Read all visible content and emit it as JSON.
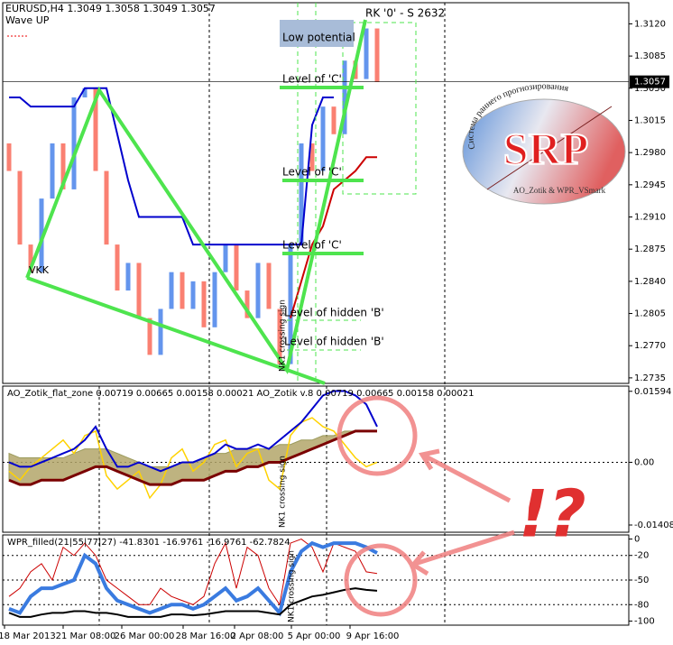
{
  "header": {
    "symbol_line": "EURUSD,H4  1.3049 1.3058 1.3049 1.3057",
    "indicator": "Wave UP"
  },
  "main_chart": {
    "type": "bar",
    "open": [
      1.299,
      1.296,
      1.288,
      1.285,
      1.293,
      1.299,
      1.294,
      1.304,
      1.305,
      1.296,
      1.288,
      1.283,
      1.286,
      1.28,
      1.276,
      1.281,
      1.285,
      1.281,
      1.284,
      1.279,
      1.285,
      1.288,
      1.283,
      1.28,
      1.286,
      1.281,
      1.275,
      1.288,
      1.299,
      1.296,
      1.303,
      1.3,
      1.308,
      1.306,
      1.3115
    ],
    "close": [
      1.296,
      1.288,
      1.285,
      1.293,
      1.299,
      1.294,
      1.304,
      1.305,
      1.296,
      1.288,
      1.283,
      1.286,
      1.28,
      1.276,
      1.281,
      1.285,
      1.281,
      1.284,
      1.279,
      1.285,
      1.288,
      1.283,
      1.28,
      1.286,
      1.281,
      1.275,
      1.288,
      1.299,
      1.296,
      1.303,
      1.3,
      1.308,
      1.306,
      1.3115,
      1.3057
    ],
    "channel": [
      1.304,
      1.304,
      1.303,
      1.303,
      1.303,
      1.303,
      1.303,
      1.305,
      1.305,
      1.305,
      1.3,
      1.295,
      1.291,
      1.291,
      1.291,
      1.291,
      1.291,
      1.288,
      1.288,
      1.288,
      1.288,
      1.288,
      1.288,
      1.288,
      1.288,
      1.288,
      1.288,
      1.288,
      1.301,
      1.304,
      1.304,
      null,
      null,
      null,
      null
    ],
    "stop": [
      null,
      null,
      null,
      null,
      null,
      null,
      null,
      null,
      null,
      null,
      null,
      null,
      null,
      null,
      null,
      null,
      null,
      null,
      null,
      null,
      null,
      null,
      null,
      null,
      null,
      null,
      1.28,
      1.284,
      1.288,
      1.29,
      1.294,
      1.295,
      1.296,
      1.2975,
      1.2975
    ],
    "up_color": "#6495ed",
    "down_color": "#fa8072",
    "channel_color": "#0000cd",
    "stop_color": "#cc0000",
    "ylim": [
      1.2729,
      1.3143
    ],
    "yticks": [
      {
        "value": 1.312,
        "label": "1.3120"
      },
      1.3085,
      {
        "value": 1.305,
        "label": "1.3050"
      },
      1.3015,
      {
        "value": 1.298,
        "label": "1.2980"
      },
      1.2945,
      {
        "value": 1.291,
        "label": "1.2910"
      },
      1.2875,
      {
        "value": 1.284,
        "label": "1.2840"
      },
      1.2805,
      {
        "value": 1.277,
        "label": "1.2770"
      },
      1.2735
    ],
    "current_price": 1.3057
  },
  "annotations": {
    "low_potential": "Low potential",
    "rk": "RK '0' - S 2632",
    "level_c": [
      "Level of 'C'",
      "Level of 'C'",
      "Level of 'C'"
    ],
    "hidden_b": [
      "Level of hidden 'B'",
      "Level of hidden 'B'"
    ],
    "vkk": "VKK",
    "nk1": "NK1 crossing sign",
    "alert": "!?"
  },
  "logo": {
    "title": "SRP",
    "arc": "Система раннего прогнозирования",
    "authors": "AO_Zotik & WPR_VSmark"
  },
  "ao_pane": {
    "title": "AO_Zotik_flat_zone 0.00719 0.00665 0.00158 0.00021   AO_Zotik v.8 0.00719 0.00665 0.00158 0.00021",
    "ylim": [
      -0.0157,
      0.0167
    ],
    "yticks": [
      0.01594,
      {
        "value": 0,
        "label": "0.00"
      },
      -0.01408
    ],
    "yellow": [
      -0.002,
      -0.004,
      -0.001,
      0.001,
      0.003,
      0.005,
      0.002,
      0.006,
      0.007,
      -0.003,
      -0.006,
      -0.004,
      -0.002,
      -0.008,
      -0.005,
      0.001,
      0.003,
      -0.002,
      0,
      0.004,
      0.005,
      -0.001,
      0.002,
      0.003,
      -0.004,
      -0.006,
      0.006,
      0.009,
      0.01,
      0.008,
      0.007,
      0.004,
      0.001,
      -0.001,
      0
    ],
    "blue": [
      0,
      -0.001,
      -0.001,
      0,
      0.001,
      0.002,
      0.003,
      0.005,
      0.008,
      0.003,
      -0.001,
      -0.001,
      0,
      -0.001,
      -0.002,
      -0.001,
      0,
      0,
      0.001,
      0.002,
      0.004,
      0.003,
      0.003,
      0.004,
      0.003,
      0.005,
      0.007,
      0.009,
      0.012,
      0.015,
      0.016,
      0.016,
      0.015,
      0.013,
      0.008
    ],
    "baseline": [
      -0.004,
      -0.005,
      -0.005,
      -0.004,
      -0.004,
      -0.004,
      -0.003,
      -0.002,
      -0.001,
      -0.001,
      -0.002,
      -0.003,
      -0.004,
      -0.005,
      -0.005,
      -0.005,
      -0.004,
      -0.004,
      -0.004,
      -0.003,
      -0.002,
      -0.002,
      -0.001,
      -0.001,
      0,
      0,
      0.001,
      0.002,
      0.003,
      0.004,
      0.005,
      0.006,
      0.007,
      0.007,
      0.007
    ],
    "band": [
      0.002,
      0.001,
      0.001,
      0.001,
      0.001,
      0.001,
      0.002,
      0.003,
      0.003,
      0.003,
      0.002,
      0.001,
      0,
      -0.001,
      -0.001,
      -0.001,
      0,
      0,
      0.001,
      0.002,
      0.002,
      0.003,
      0.003,
      0.003,
      0.003,
      0.004,
      0.004,
      0.005,
      0.005,
      0.006,
      0.006,
      0.007,
      0.007,
      0.007,
      0.007
    ]
  },
  "wpr_pane": {
    "title": "WPR_filled(21|55|77|27)  -41.8301 -16.9761 -16.9761 -62.7824",
    "ylim": [
      -105,
      5
    ],
    "yticks": [
      0,
      -20,
      -50,
      -80,
      -100
    ],
    "blue": [
      -85,
      -90,
      -70,
      -60,
      -60,
      -55,
      -50,
      -20,
      -30,
      -60,
      -75,
      -80,
      -85,
      -90,
      -85,
      -80,
      -80,
      -85,
      -80,
      -70,
      -60,
      -75,
      -70,
      -60,
      -75,
      -90,
      -40,
      -15,
      -5,
      -10,
      -5,
      -5,
      -5,
      -10,
      -17
    ],
    "red": [
      -70,
      -60,
      -40,
      -30,
      -50,
      -10,
      -20,
      -5,
      -20,
      -50,
      -60,
      -70,
      -80,
      -80,
      -60,
      -70,
      -75,
      -80,
      -70,
      -30,
      -5,
      -60,
      -10,
      -20,
      -60,
      -80,
      -5,
      0,
      -10,
      -40,
      -5,
      -10,
      -15,
      -40,
      -42
    ],
    "black": [
      -90,
      -95,
      -95,
      -92,
      -90,
      -90,
      -88,
      -88,
      -90,
      -90,
      -92,
      -95,
      -95,
      -95,
      -95,
      -92,
      -92,
      -93,
      -92,
      -90,
      -88,
      -88,
      -88,
      -88,
      -90,
      -92,
      -80,
      -75,
      -70,
      -68,
      -65,
      -62,
      -60,
      -62,
      -63
    ]
  },
  "time_axis": [
    "18 Mar 2013",
    "21 Mar 08:00",
    "26 Mar 00:00",
    "28 Mar 16:00",
    "2 Apr 08:00",
    "5 Apr 00:00",
    "9 Apr 16:00"
  ]
}
